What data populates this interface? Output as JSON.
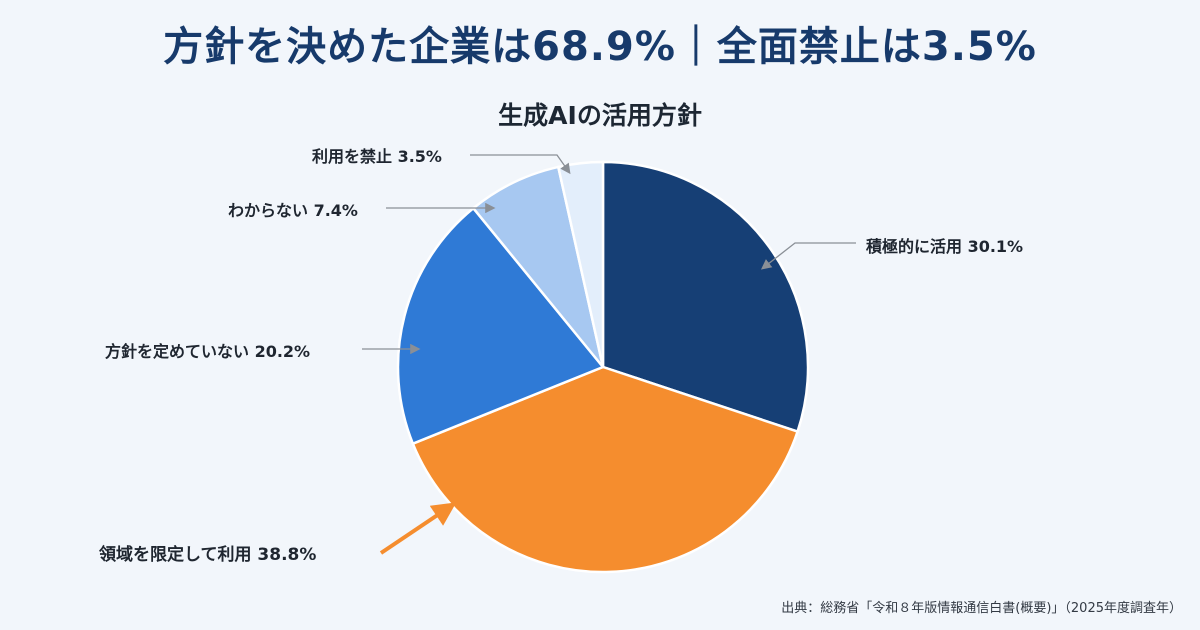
{
  "headline": {
    "text": "方針を決めた企業は68.9%｜全面禁止は3.5%"
  },
  "source": "出典：総務省「令和８年版情報通信白書(概要)」（2025年度調査年）",
  "colors": {
    "active": "#163f75",
    "limited": "#f58d2e",
    "undecided": "#2f7ad6",
    "unknown": "#a7c8f1",
    "prohibited": "#e3eefb",
    "highlight_arrow": "#f58d2e",
    "leader": "#8a8f96"
  },
  "chart_data": {
    "type": "pie",
    "title": "生成AIの活用方針",
    "start_angle_deg": 0,
    "direction": "clockwise",
    "slices": [
      {
        "label": "積極的に活用",
        "value": 30.1,
        "display": "積極的に活用 30.1%",
        "color": "#163f75"
      },
      {
        "label": "領域を限定して利用",
        "value": 38.8,
        "display": "領域を限定して利用 38.8%",
        "color": "#f58d2e",
        "highlight": true
      },
      {
        "label": "方針を定めていない",
        "value": 20.2,
        "display": "方針を定めていない 20.2%",
        "color": "#2f7ad6"
      },
      {
        "label": "わからない",
        "value": 7.4,
        "display": "わからない 7.4%",
        "color": "#a7c8f1"
      },
      {
        "label": "利用を禁止",
        "value": 3.5,
        "display": "利用を禁止 3.5%",
        "color": "#e3eefb"
      }
    ]
  }
}
